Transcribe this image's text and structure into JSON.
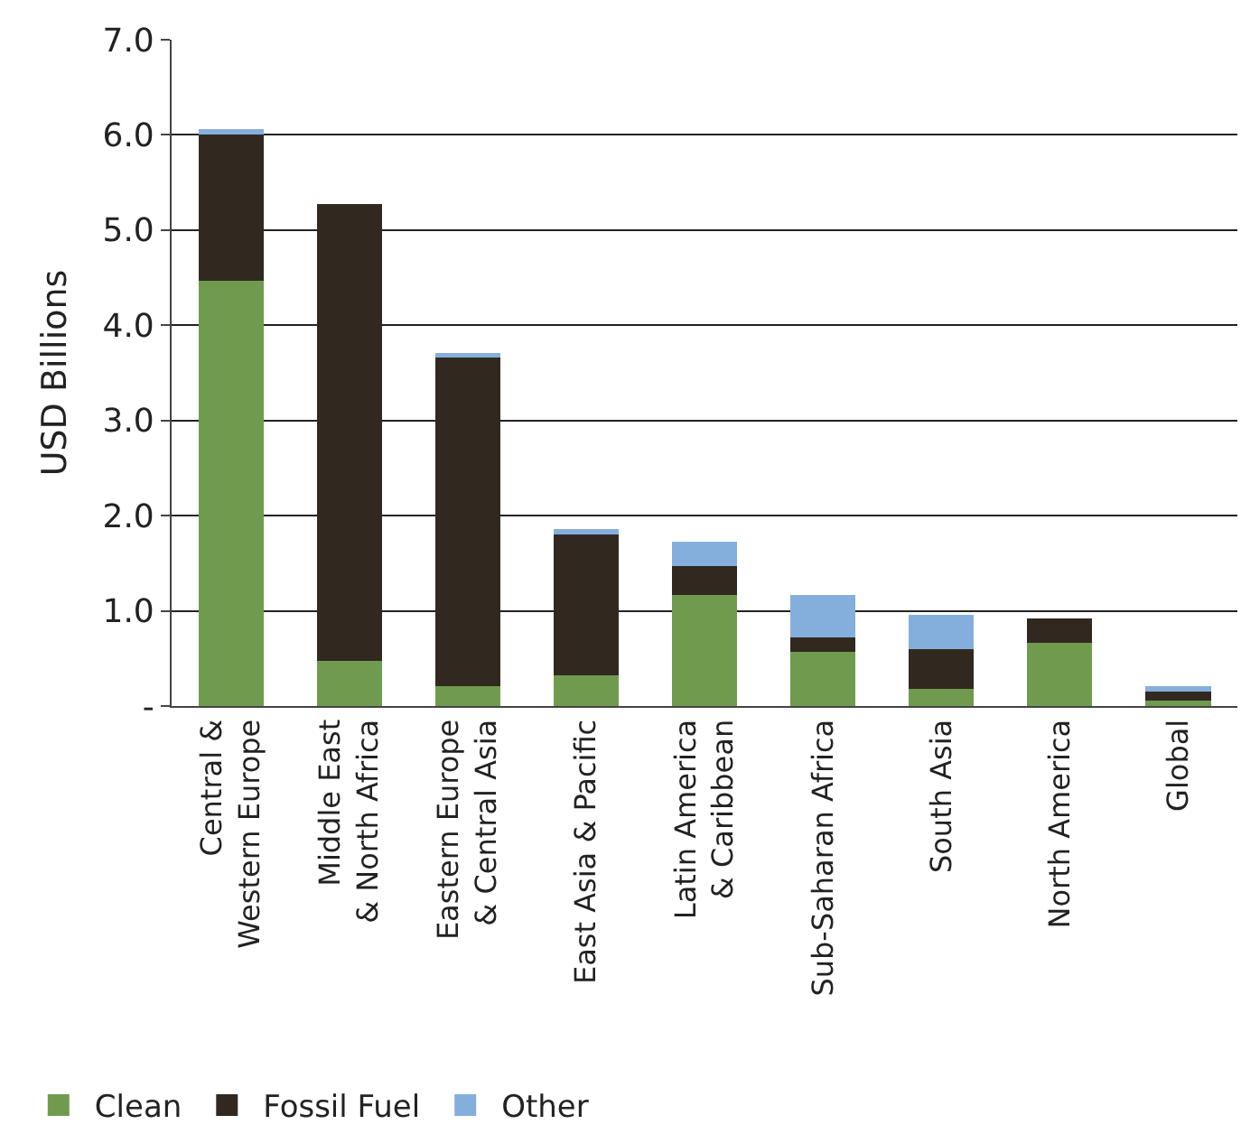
{
  "chart_data": {
    "type": "bar",
    "stacked": true,
    "ylabel": "USD Billions",
    "categories": [
      "Central &\nWestern Europe",
      "Middle East\n& North Africa",
      "Eastern Europe\n& Central Asia",
      "East Asia & Pacific",
      "Latin America\n& Caribbean",
      "Sub-Saharan Africa",
      "South Asia",
      "North America",
      "Global"
    ],
    "series": [
      {
        "name": "Clean",
        "color": "#709b4e",
        "values": [
          4.47,
          0.47,
          0.21,
          0.32,
          1.17,
          0.57,
          0.18,
          0.66,
          0.06
        ]
      },
      {
        "name": "Fossil Fuel",
        "color": "#312920",
        "values": [
          1.53,
          4.8,
          3.45,
          1.48,
          0.3,
          0.15,
          0.42,
          0.26,
          0.09
        ]
      },
      {
        "name": "Other",
        "color": "#84afdc",
        "values": [
          0.06,
          null,
          0.05,
          0.06,
          0.26,
          0.45,
          0.36,
          null,
          0.06
        ]
      }
    ],
    "ylim": [
      0,
      7
    ],
    "yticks": [
      {
        "value": 0,
        "label": "-"
      },
      {
        "value": 1,
        "label": "1.0"
      },
      {
        "value": 2,
        "label": "2.0"
      },
      {
        "value": 3,
        "label": "3.0"
      },
      {
        "value": 4,
        "label": "4.0"
      },
      {
        "value": 5,
        "label": "5.0"
      },
      {
        "value": 6,
        "label": "6.0"
      },
      {
        "value": 7,
        "label": "7.0"
      }
    ],
    "grid": "y",
    "legend": "bottom"
  }
}
